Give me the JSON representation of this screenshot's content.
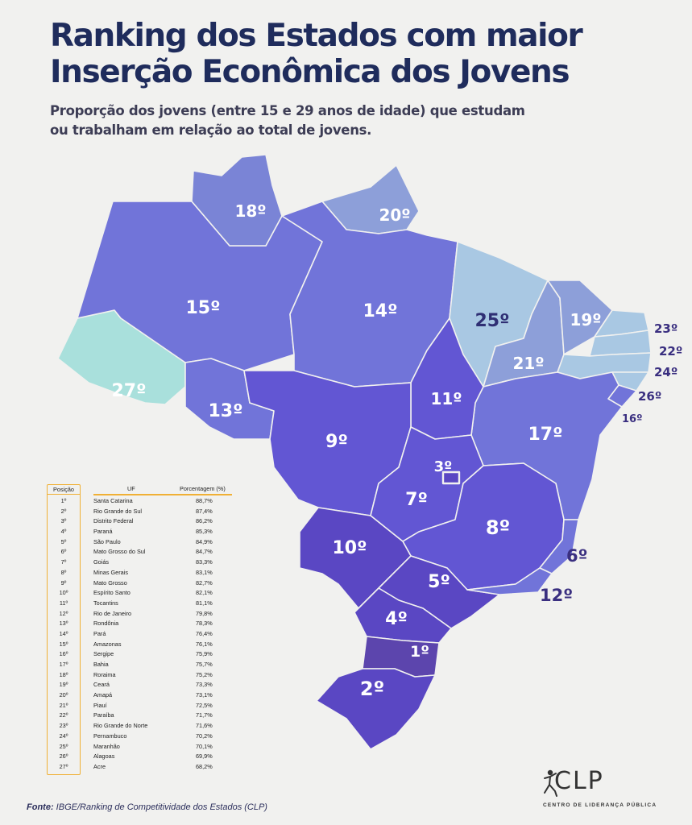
{
  "title_line1": "Ranking dos Estados com maior",
  "title_line2": "Inserção Econômica dos Jovens",
  "subtitle_line1": "Proporção dos jovens (entre 15 e 29 anos de idade) que estudam",
  "subtitle_line2": "ou trabalham em relação ao total de jovens.",
  "colors": {
    "title": "#1f2c5c",
    "rank_1_3": "#5a47c3",
    "rank_4_9": "#6256d3",
    "rank_10_17": "#7174d9",
    "rank_18_21": "#8d9fd9",
    "rank_22_26": "#a9c8e3",
    "rank_27": "#a9e0dc",
    "highlight_table": "#f0b035"
  },
  "map": {
    "states": [
      {
        "uf": "Acre",
        "rank_label": "27º"
      },
      {
        "uf": "Amazonas",
        "rank_label": "15º"
      },
      {
        "uf": "Roraima",
        "rank_label": "18º"
      },
      {
        "uf": "Amapá",
        "rank_label": "20º"
      },
      {
        "uf": "Pará",
        "rank_label": "14º"
      },
      {
        "uf": "Maranhão",
        "rank_label": "25º"
      },
      {
        "uf": "Piauí",
        "rank_label": "21º"
      },
      {
        "uf": "Ceará",
        "rank_label": "19º"
      },
      {
        "uf": "Rio Grande do Norte",
        "rank_label": "23º"
      },
      {
        "uf": "Paraíba",
        "rank_label": "22º"
      },
      {
        "uf": "Pernambuco",
        "rank_label": "24º"
      },
      {
        "uf": "Alagoas",
        "rank_label": "26º"
      },
      {
        "uf": "Sergipe",
        "rank_label": "16º"
      },
      {
        "uf": "Bahia",
        "rank_label": "17º"
      },
      {
        "uf": "Tocantins",
        "rank_label": "11º"
      },
      {
        "uf": "Rondônia",
        "rank_label": "13º"
      },
      {
        "uf": "Mato Grosso",
        "rank_label": "9º"
      },
      {
        "uf": "Distrito Federal",
        "rank_label": "3º"
      },
      {
        "uf": "Goiás",
        "rank_label": "7º"
      },
      {
        "uf": "Minas Gerais",
        "rank_label": "8º"
      },
      {
        "uf": "Espírito Santo",
        "rank_label": "10º"
      },
      {
        "uf": "Mato Grosso do Sul",
        "rank_label": "6º"
      },
      {
        "uf": "São Paulo",
        "rank_label": "5º"
      },
      {
        "uf": "Rio de Janeiro",
        "rank_label": "12º"
      },
      {
        "uf": "Paraná",
        "rank_label": "4º"
      },
      {
        "uf": "Santa Catarina",
        "rank_label": "1º"
      },
      {
        "uf": "Rio Grande do Sul",
        "rank_label": "2º"
      }
    ]
  },
  "table": {
    "headers": {
      "position": "Posição",
      "uf": "UF",
      "percentage": "Porcentagem (%)"
    },
    "rows": [
      {
        "pos": "1º",
        "uf": "Santa Catarina",
        "pct": "88,7%"
      },
      {
        "pos": "2º",
        "uf": "Rio Grande do Sul",
        "pct": "87,4%"
      },
      {
        "pos": "3º",
        "uf": "Distrito Federal",
        "pct": "86,2%"
      },
      {
        "pos": "4º",
        "uf": "Paraná",
        "pct": "85,3%"
      },
      {
        "pos": "5º",
        "uf": "São Paulo",
        "pct": "84,9%"
      },
      {
        "pos": "6º",
        "uf": "Mato Grosso do Sul",
        "pct": "84,7%"
      },
      {
        "pos": "7º",
        "uf": "Goiás",
        "pct": "83,3%"
      },
      {
        "pos": "8º",
        "uf": "Minas Gerais",
        "pct": "83,1%"
      },
      {
        "pos": "9º",
        "uf": "Mato Grosso",
        "pct": "82,7%"
      },
      {
        "pos": "10º",
        "uf": "Espírito Santo",
        "pct": "82,1%"
      },
      {
        "pos": "11º",
        "uf": "Tocantins",
        "pct": "81,1%"
      },
      {
        "pos": "12º",
        "uf": "Rio de Janeiro",
        "pct": "79,8%"
      },
      {
        "pos": "13º",
        "uf": "Rondônia",
        "pct": "78,3%"
      },
      {
        "pos": "14º",
        "uf": "Pará",
        "pct": "76,4%"
      },
      {
        "pos": "15º",
        "uf": "Amazonas",
        "pct": "76,1%"
      },
      {
        "pos": "16º",
        "uf": "Sergipe",
        "pct": "75,9%"
      },
      {
        "pos": "17º",
        "uf": "Bahia",
        "pct": "75,7%"
      },
      {
        "pos": "18º",
        "uf": "Roraima",
        "pct": "75,2%"
      },
      {
        "pos": "19º",
        "uf": "Ceará",
        "pct": "73,3%"
      },
      {
        "pos": "20º",
        "uf": "Amapá",
        "pct": "73,1%"
      },
      {
        "pos": "21º",
        "uf": "Piauí",
        "pct": "72,5%"
      },
      {
        "pos": "22º",
        "uf": "Paraíba",
        "pct": "71,7%"
      },
      {
        "pos": "23º",
        "uf": "Rio Grande do Norte",
        "pct": "71,6%"
      },
      {
        "pos": "24º",
        "uf": "Pernambuco",
        "pct": "70,2%"
      },
      {
        "pos": "25º",
        "uf": "Maranhão",
        "pct": "70,1%"
      },
      {
        "pos": "26º",
        "uf": "Alagoas",
        "pct": "69,9%"
      },
      {
        "pos": "27º",
        "uf": "Acre",
        "pct": "68,2%"
      }
    ]
  },
  "source_label": "Fonte:",
  "source_text": "IBGE/Ranking de Competitividade dos Estados (CLP)",
  "logo": {
    "name": "CLP",
    "subtitle": "CENTRO DE LIDERANÇA PÚBLICA",
    "icon": "person-jumping-icon"
  }
}
